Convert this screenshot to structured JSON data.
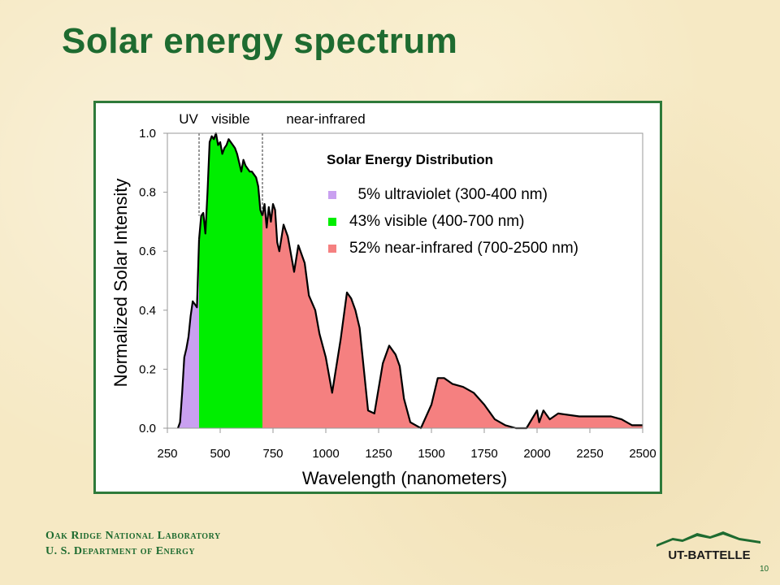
{
  "slide": {
    "title": "Solar energy spectrum",
    "footer_line1": "Oak Ridge National Laboratory",
    "footer_line2": "U. S. Department of Energy",
    "logo_text": "UT-BATTELLE",
    "page_number": "10"
  },
  "colors": {
    "title": "#1e6b30",
    "frame": "#2e7a3a",
    "uv": "#c9a0f0",
    "visible": "#00ee00",
    "nir": "#f58080",
    "outline": "#000000"
  },
  "chart_data": {
    "type": "area",
    "title": "Solar Energy Distribution",
    "xlabel": "Wavelength (nanometers)",
    "ylabel": "Normalized Solar Intensity",
    "xlim": [
      250,
      2500
    ],
    "ylim": [
      0,
      1.0
    ],
    "xticks": [
      250,
      500,
      750,
      1000,
      1250,
      1500,
      1750,
      2000,
      2250,
      2500
    ],
    "yticks": [
      0.0,
      0.2,
      0.4,
      0.6,
      0.8,
      1.0
    ],
    "ytick_labels": [
      "0.0",
      "0.2",
      "0.4",
      "0.6",
      "0.8",
      "1.0"
    ],
    "grid": false,
    "band_labels": [
      {
        "text": "UV",
        "x": 350
      },
      {
        "text": "visible",
        "x": 550
      },
      {
        "text": "near-infrared",
        "x": 1000
      }
    ],
    "band_boundaries": [
      400,
      700
    ],
    "legend": [
      {
        "label": "  5% ultraviolet (300-400 nm)",
        "color": "#c9a0f0"
      },
      {
        "label": "43% visible (400-700 nm)",
        "color": "#00ee00"
      },
      {
        "label": "52% near-infrared (700-2500 nm)",
        "color": "#f58080"
      }
    ],
    "legend_placement": "top-right",
    "series": [
      {
        "name": "5% ultraviolet (300-400 nm)",
        "band": [
          300,
          400
        ],
        "x": [
          300,
          310,
          320,
          330,
          340,
          350,
          360,
          370,
          380,
          390,
          400
        ],
        "y": [
          0.0,
          0.02,
          0.12,
          0.24,
          0.27,
          0.31,
          0.38,
          0.43,
          0.42,
          0.41,
          0.64
        ]
      },
      {
        "name": "43% visible (400-700 nm)",
        "band": [
          400,
          700
        ],
        "x": [
          400,
          410,
          420,
          430,
          440,
          450,
          460,
          470,
          480,
          490,
          500,
          510,
          520,
          530,
          540,
          550,
          560,
          570,
          580,
          590,
          600,
          610,
          620,
          630,
          640,
          650,
          660,
          670,
          680,
          690,
          700
        ],
        "y": [
          0.64,
          0.72,
          0.73,
          0.66,
          0.8,
          0.97,
          0.99,
          0.98,
          1.0,
          0.96,
          0.97,
          0.93,
          0.95,
          0.96,
          0.98,
          0.97,
          0.96,
          0.95,
          0.93,
          0.9,
          0.87,
          0.91,
          0.89,
          0.88,
          0.87,
          0.87,
          0.86,
          0.85,
          0.82,
          0.74,
          0.72
        ]
      },
      {
        "name": "52% near-infrared (700-2500 nm)",
        "band": [
          700,
          2500
        ],
        "x": [
          700,
          710,
          720,
          730,
          740,
          750,
          760,
          770,
          780,
          800,
          820,
          850,
          870,
          900,
          920,
          950,
          970,
          1000,
          1030,
          1070,
          1100,
          1120,
          1140,
          1160,
          1180,
          1200,
          1230,
          1270,
          1300,
          1330,
          1350,
          1370,
          1400,
          1450,
          1500,
          1530,
          1560,
          1600,
          1650,
          1700,
          1750,
          1800,
          1850,
          1900,
          1950,
          2000,
          2010,
          2030,
          2060,
          2100,
          2200,
          2300,
          2350,
          2400,
          2450,
          2500
        ],
        "y": [
          0.72,
          0.76,
          0.68,
          0.75,
          0.7,
          0.76,
          0.74,
          0.63,
          0.6,
          0.69,
          0.65,
          0.53,
          0.62,
          0.56,
          0.45,
          0.4,
          0.32,
          0.24,
          0.12,
          0.3,
          0.46,
          0.44,
          0.4,
          0.34,
          0.2,
          0.06,
          0.05,
          0.22,
          0.28,
          0.25,
          0.21,
          0.1,
          0.02,
          0.0,
          0.08,
          0.17,
          0.17,
          0.15,
          0.14,
          0.12,
          0.08,
          0.03,
          0.01,
          0.0,
          0.0,
          0.06,
          0.02,
          0.06,
          0.03,
          0.05,
          0.04,
          0.04,
          0.04,
          0.03,
          0.01,
          0.01
        ]
      }
    ]
  }
}
